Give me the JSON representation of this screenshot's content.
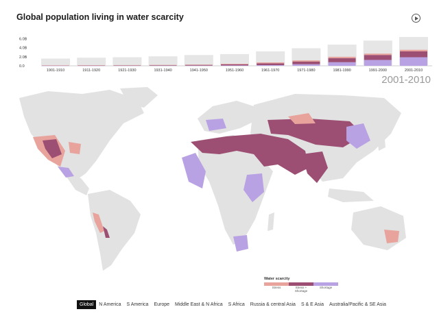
{
  "title": "Global population living in water scarcity",
  "play_icon": "play-icon",
  "selected_decade": "2001-2010",
  "colors": {
    "stress": "#e7a39c",
    "stress_shortage": "#9c4f73",
    "shortage": "#b9a2e3",
    "land": "#e2e2e2",
    "bar_bg": "#e6e6e6"
  },
  "chart_data": {
    "type": "bar",
    "y_ticks": [
      "6.0B",
      "4.0B",
      "2.0B",
      "0.0"
    ],
    "ylim": [
      0,
      7
    ],
    "categories": [
      "1901-1910",
      "1911-1920",
      "1921-1930",
      "1931-1940",
      "1941-1950",
      "1951-1960",
      "1961-1970",
      "1971-1980",
      "1981-1990",
      "1991-2000",
      "2001-2010"
    ],
    "series": [
      {
        "name": "Shortage",
        "values": [
          0.02,
          0.02,
          0.03,
          0.04,
          0.05,
          0.08,
          0.15,
          0.35,
          0.8,
          1.3,
          1.9
        ]
      },
      {
        "name": "Stress + Shortage",
        "values": [
          0.05,
          0.06,
          0.08,
          0.1,
          0.15,
          0.25,
          0.4,
          0.6,
          0.9,
          1.1,
          1.3
        ]
      },
      {
        "name": "Stress",
        "values": [
          0.03,
          0.04,
          0.05,
          0.06,
          0.08,
          0.12,
          0.2,
          0.25,
          0.3,
          0.3,
          0.35
        ]
      }
    ],
    "totals": [
      1.6,
      1.8,
      1.9,
      2.1,
      2.4,
      2.6,
      3.2,
      3.9,
      4.7,
      5.6,
      6.4
    ]
  },
  "legend": {
    "title": "Water scarcity",
    "items": [
      "Stress",
      "Stress + Shortage",
      "Shortage"
    ]
  },
  "regions": [
    "Global",
    "N America",
    "S America",
    "Europe",
    "Middle East & N Africa",
    "S Africa",
    "Russia & central Asia",
    "S & E Asia",
    "Australia/Pacific & SE Asia"
  ],
  "active_region": "Global"
}
